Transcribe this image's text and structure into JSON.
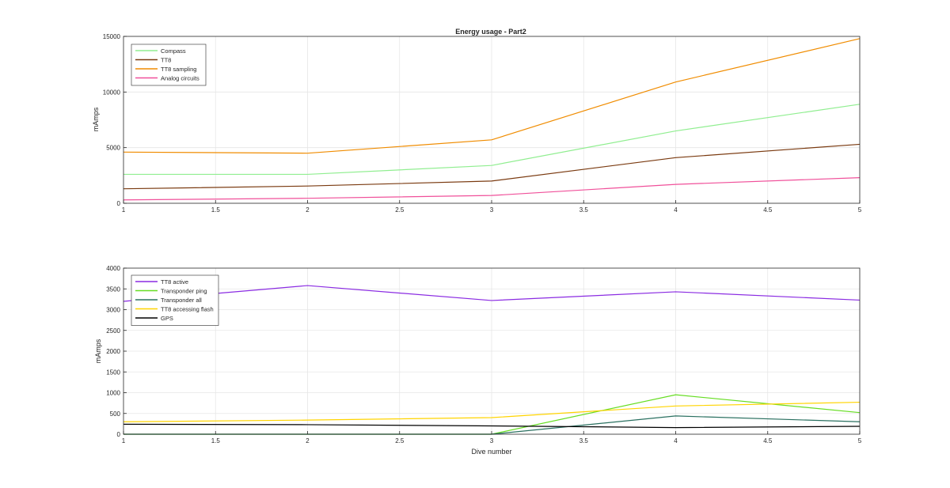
{
  "chart_data": [
    {
      "type": "line",
      "title": "Energy usage - Part2",
      "xlabel": "",
      "ylabel": "mAmps",
      "x": [
        1,
        2,
        3,
        4,
        5
      ],
      "xlim": [
        1,
        5
      ],
      "ylim": [
        0,
        15000
      ],
      "xticks": [
        "1",
        "1.5",
        "2",
        "2.5",
        "3",
        "3.5",
        "4",
        "4.5",
        "5"
      ],
      "yticks": [
        "0",
        "5000",
        "10000",
        "15000"
      ],
      "grid": true,
      "legend_position": "top-left",
      "series": [
        {
          "name": "Compass",
          "color": "#90ee90",
          "values": [
            2600,
            2600,
            3400,
            6500,
            8900
          ]
        },
        {
          "name": "TT8",
          "color": "#7a3a10",
          "values": [
            1300,
            1550,
            2000,
            4100,
            5300
          ]
        },
        {
          "name": "TT8 sampling",
          "color": "#f08c00",
          "values": [
            4600,
            4500,
            5700,
            10900,
            14800
          ]
        },
        {
          "name": "Analog circuits",
          "color": "#f0509a",
          "values": [
            300,
            450,
            700,
            1700,
            2300
          ]
        }
      ]
    },
    {
      "type": "line",
      "title": "",
      "xlabel": "Dive number",
      "ylabel": "mAmps",
      "x": [
        1,
        2,
        3,
        4,
        5
      ],
      "xlim": [
        1,
        5
      ],
      "ylim": [
        0,
        4000
      ],
      "xticks": [
        "1",
        "1.5",
        "2",
        "2.5",
        "3",
        "3.5",
        "4",
        "4.5",
        "5"
      ],
      "yticks": [
        "0",
        "500",
        "1000",
        "1500",
        "2000",
        "2500",
        "3000",
        "3500",
        "4000"
      ],
      "grid": true,
      "legend_position": "top-left",
      "series": [
        {
          "name": "TT8 active",
          "color": "#8a2be2",
          "values": [
            3200,
            3580,
            3220,
            3430,
            3230
          ]
        },
        {
          "name": "Transponder ping",
          "color": "#66dd22",
          "values": [
            0,
            0,
            0,
            950,
            520
          ]
        },
        {
          "name": "Transponder all",
          "color": "#2a7060",
          "values": [
            0,
            0,
            0,
            440,
            300
          ]
        },
        {
          "name": "TT8 accessing flash",
          "color": "#ffd400",
          "values": [
            300,
            340,
            400,
            680,
            770
          ]
        },
        {
          "name": "GPS",
          "color": "#000000",
          "values": [
            240,
            230,
            200,
            160,
            190
          ]
        }
      ]
    }
  ]
}
